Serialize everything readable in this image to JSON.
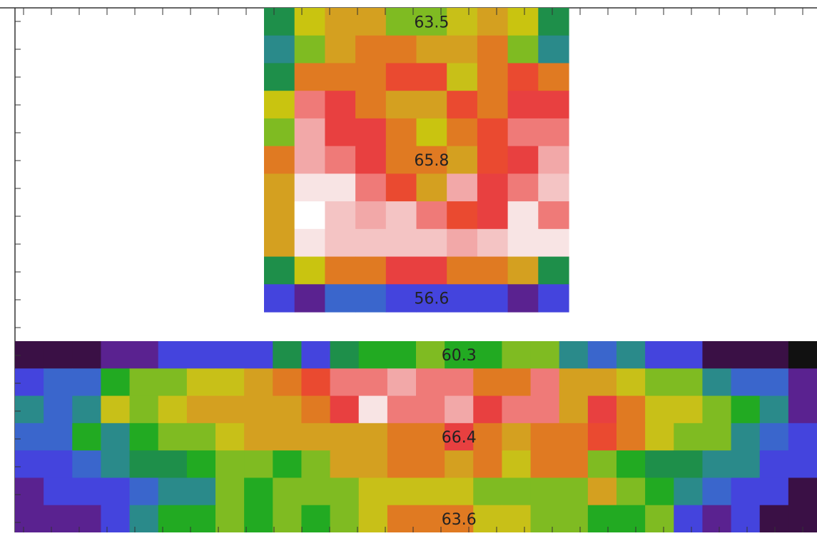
{
  "palette": {
    "K": "#111111",
    "V": "#3a1045",
    "P": "#5a2290",
    "B": "#4444dd",
    "U": "#3a66cc",
    "T": "#2a8a8a",
    "E": "#1e8f4a",
    "G": "#22aa22",
    "L": "#7fbb22",
    "Y": "#c8c018",
    "Q": "#c9c410",
    "D": "#d4a020",
    "O": "#e07a22",
    "R": "#ea4a30",
    "F": "#e84040",
    "S": "#ef7a78",
    "p": "#f2a8a8",
    "q": "#f4c4c4",
    "W": "#f8e4e4",
    "H": "#ffffff"
  },
  "frame_color": "#333333",
  "chart_data": [
    {
      "type": "heatmap",
      "title": "",
      "xlabel": "",
      "ylabel": "",
      "grid": false,
      "cell_colors": [
        "EQDDLLYDQE",
        "TLDOODDOLT",
        "EOOORRYORO",
        "QSFODDROFF",
        "LpFFOQORSS",
        "OpSFOODRFp",
        "DWWSRDpFSq",
        "DHqpqSRFWS",
        "DWqqqqpqWW",
        "EQOOFFOODE",
        "BPUUBBBBPB"
      ],
      "annotations": [
        {
          "row": 0,
          "col": 5,
          "text": "63.5"
        },
        {
          "row": 5,
          "col": 5,
          "text": "65.8"
        },
        {
          "row": 10,
          "col": 5,
          "text": "56.6"
        }
      ]
    },
    {
      "type": "heatmap",
      "title": "",
      "xlabel": "",
      "ylabel": "",
      "grid": false,
      "cell_colors": [
        "VVVPPBBBBEBEGGLGGLLTUTBBVVVK",
        "BUUGLLYYDORSSpSSOOSDDYLLTUUP",
        "TUTYLYDDDDOFWSSpFSSDFOYYLGTP",
        "UUGTGLLYDDDDDOOFODOOROYLLTUB",
        "BBUTEEGLLGLDDOODOYOOLGEETTBB",
        "PBBBUTTLGLLLYYYYLLLLDLGTUBBV",
        "PPPBTGGLGLGLYOOOYYLLGGLBPBVV"
      ],
      "annotations": [
        {
          "row": 0,
          "col": 15,
          "text": "60.3"
        },
        {
          "row": 3,
          "col": 15,
          "text": "66.4"
        },
        {
          "row": 6,
          "col": 15,
          "text": "63.6"
        }
      ]
    }
  ]
}
